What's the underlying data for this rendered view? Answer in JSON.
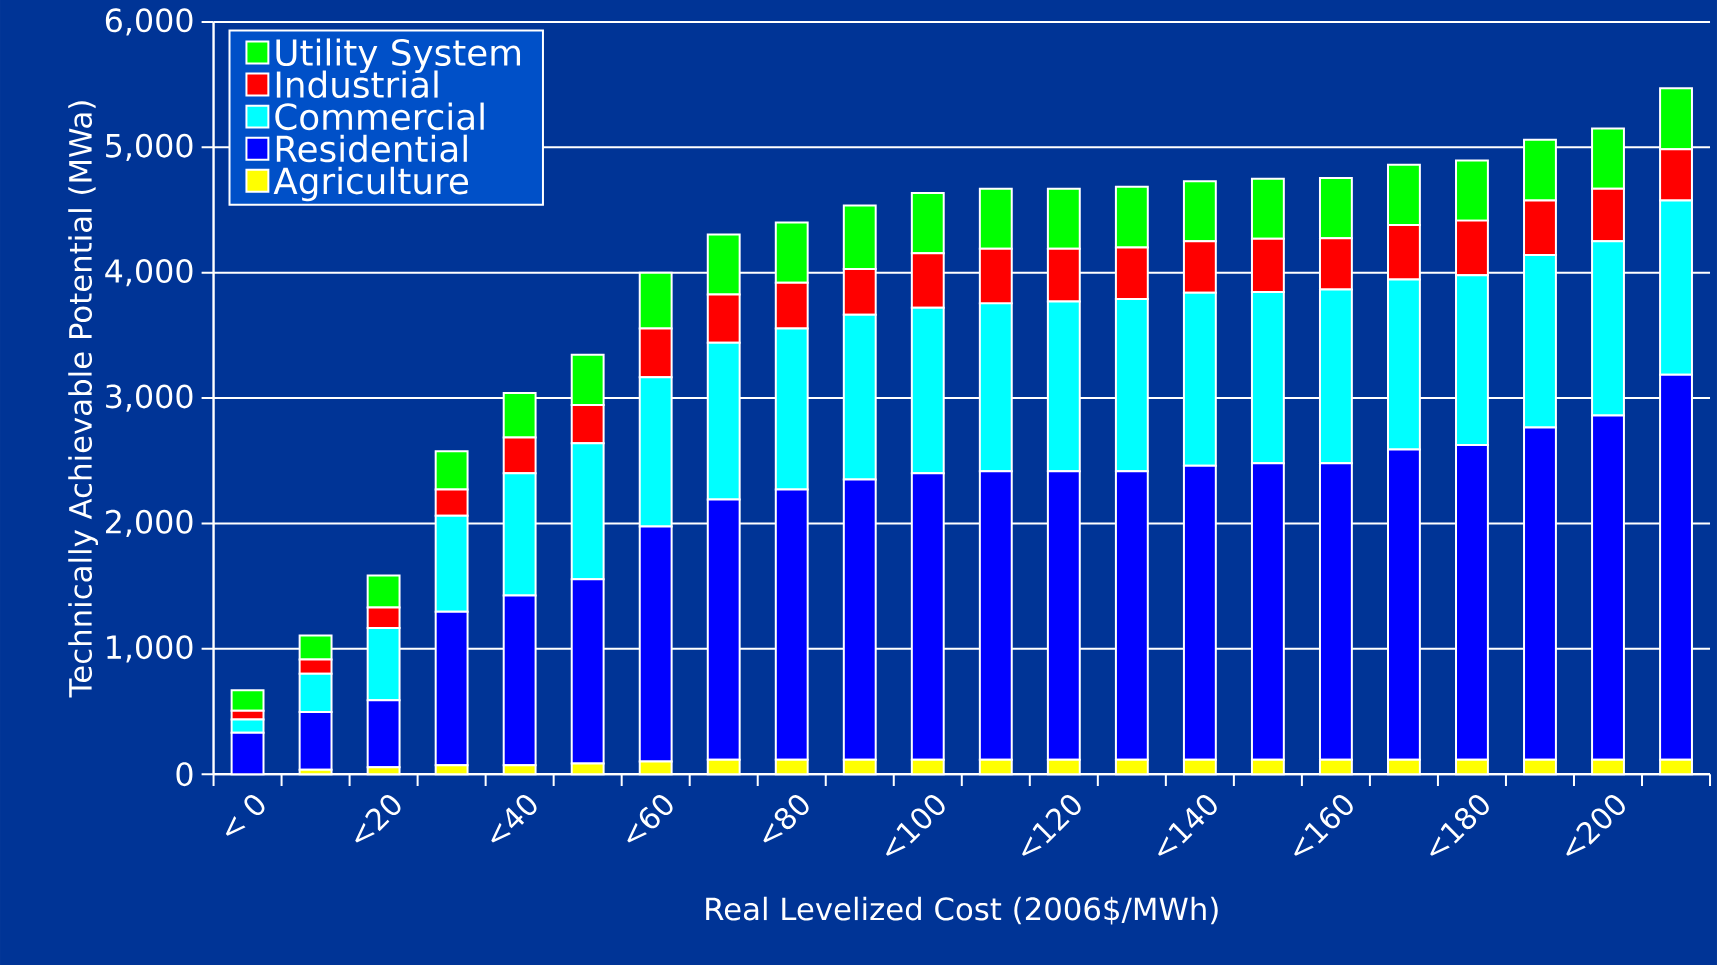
{
  "chart_data": {
    "type": "bar",
    "stacked": true,
    "xlabel": "Real Levelized Cost (2006$/MWh)",
    "ylabel": "Technically Achievable Potential (MWa)",
    "categories": [
      "< 0",
      null,
      "<20",
      null,
      "<40",
      null,
      "<60",
      null,
      "<80",
      null,
      "<100",
      null,
      "<120",
      null,
      "<140",
      null,
      "<160",
      null,
      "<180",
      null,
      "<200",
      null
    ],
    "series": [
      {
        "name": "Agriculture",
        "color": "#ffff00",
        "values": [
          0,
          35,
          55,
          70,
          70,
          85,
          100,
          115,
          115,
          115,
          115,
          115,
          115,
          115,
          115,
          115,
          115,
          115,
          115,
          115,
          115,
          115
        ]
      },
      {
        "name": "Residential",
        "color": "#0000ff",
        "values": [
          330,
          460,
          535,
          1225,
          1355,
          1470,
          1875,
          2075,
          2155,
          2235,
          2285,
          2300,
          2300,
          2300,
          2345,
          2365,
          2365,
          2475,
          2510,
          2650,
          2745,
          3070
        ]
      },
      {
        "name": "Commercial",
        "color": "#00ffff",
        "values": [
          105,
          305,
          575,
          765,
          975,
          1085,
          1190,
          1250,
          1285,
          1315,
          1320,
          1340,
          1355,
          1375,
          1380,
          1365,
          1385,
          1355,
          1355,
          1375,
          1390,
          1390
        ]
      },
      {
        "name": "Industrial",
        "color": "#ff0000",
        "values": [
          70,
          115,
          165,
          210,
          285,
          305,
          390,
          385,
          365,
          365,
          435,
          435,
          420,
          410,
          410,
          425,
          410,
          435,
          435,
          435,
          420,
          410
        ]
      },
      {
        "name": "Utility System",
        "color": "#00ff00",
        "values": [
          165,
          190,
          255,
          305,
          355,
          400,
          445,
          480,
          480,
          505,
          480,
          480,
          480,
          485,
          480,
          480,
          480,
          480,
          480,
          485,
          480,
          485
        ]
      }
    ],
    "ylim": [
      0,
      6000
    ],
    "yticks": [
      0,
      {
        "value": 1000,
        "label": "1,000"
      },
      {
        "value": 2000,
        "label": "2,000"
      },
      {
        "value": 3000,
        "label": "3,000"
      },
      {
        "value": 4000,
        "label": "4,000"
      },
      {
        "value": 5000,
        "label": "5,000"
      },
      {
        "value": 6000,
        "label": "6,000"
      }
    ],
    "grid": "y",
    "legend": "top left"
  }
}
